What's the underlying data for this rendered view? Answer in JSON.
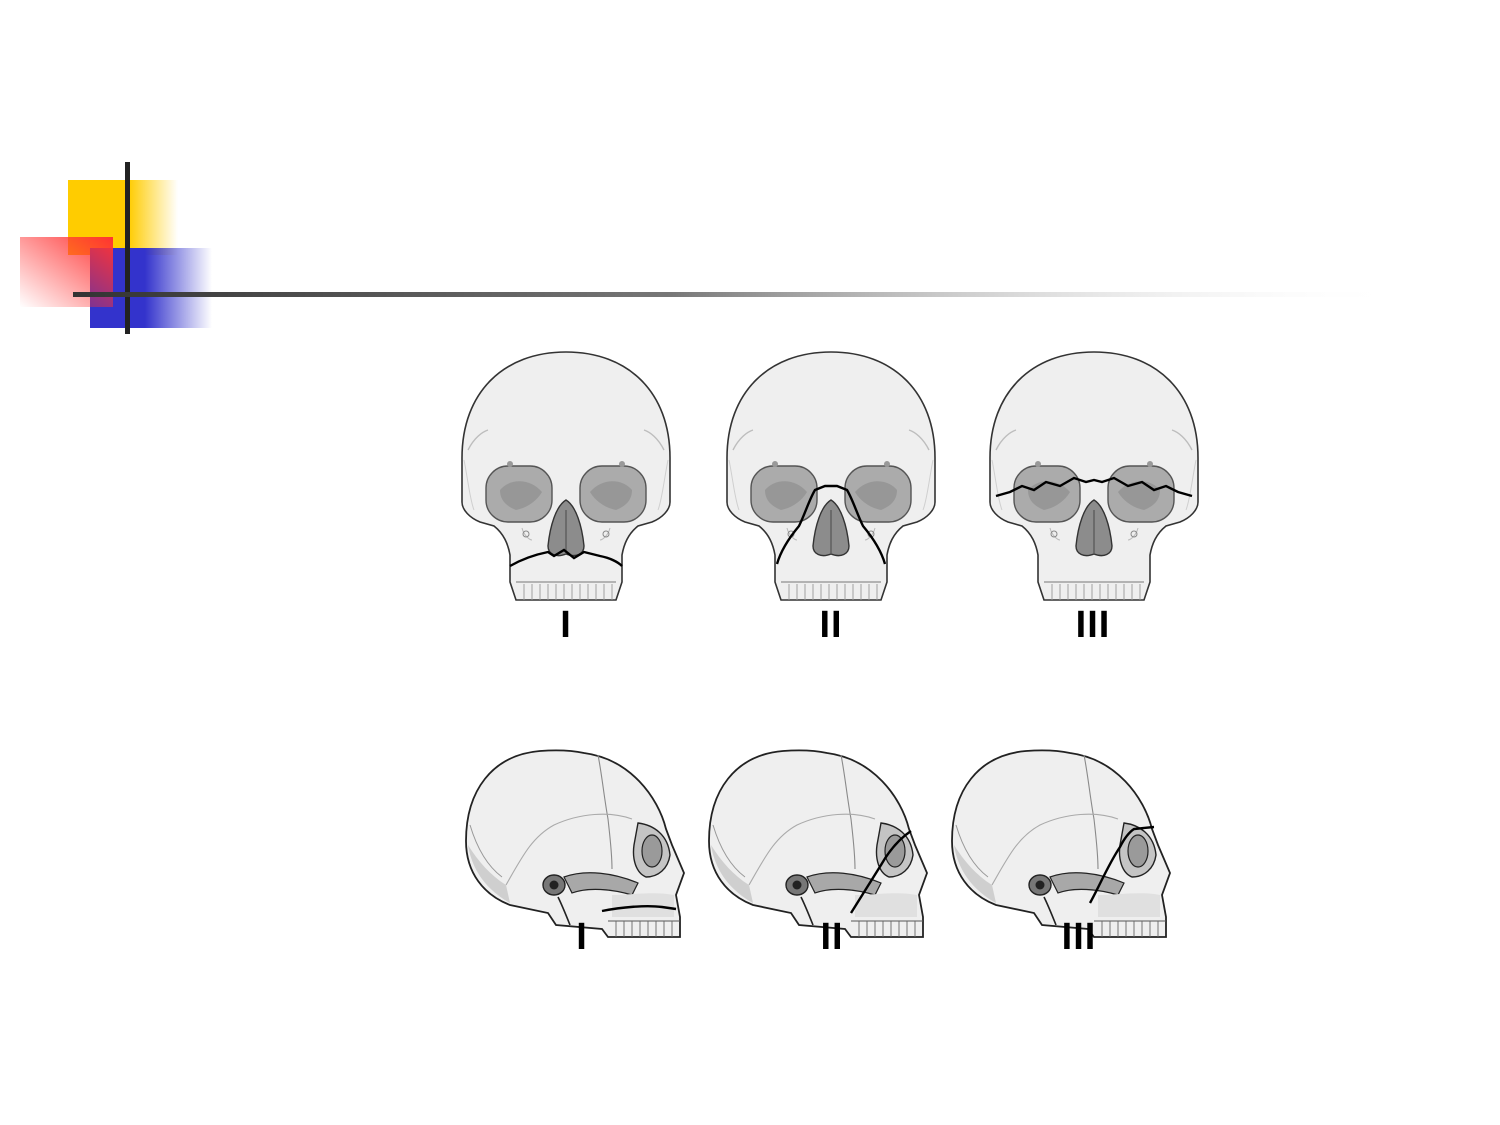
{
  "colors": {
    "accent_yellow": "#FFCC00",
    "accent_red": "#FF3333",
    "accent_blue": "#3333CC",
    "rule": "#333333",
    "bone": "#EFEFEF",
    "orbit": "#A8A8A8",
    "nasal": "#888888",
    "outline": "#333333",
    "fracture": "#000000"
  },
  "frontal_views": [
    {
      "label": "I",
      "fracture_type": "I"
    },
    {
      "label": "II",
      "fracture_type": "II"
    },
    {
      "label": "III",
      "fracture_type": "III"
    }
  ],
  "lateral_views": [
    {
      "label": "I",
      "fracture_type": "I"
    },
    {
      "label": "II",
      "fracture_type": "II"
    },
    {
      "label": "III",
      "fracture_type": "III"
    }
  ]
}
